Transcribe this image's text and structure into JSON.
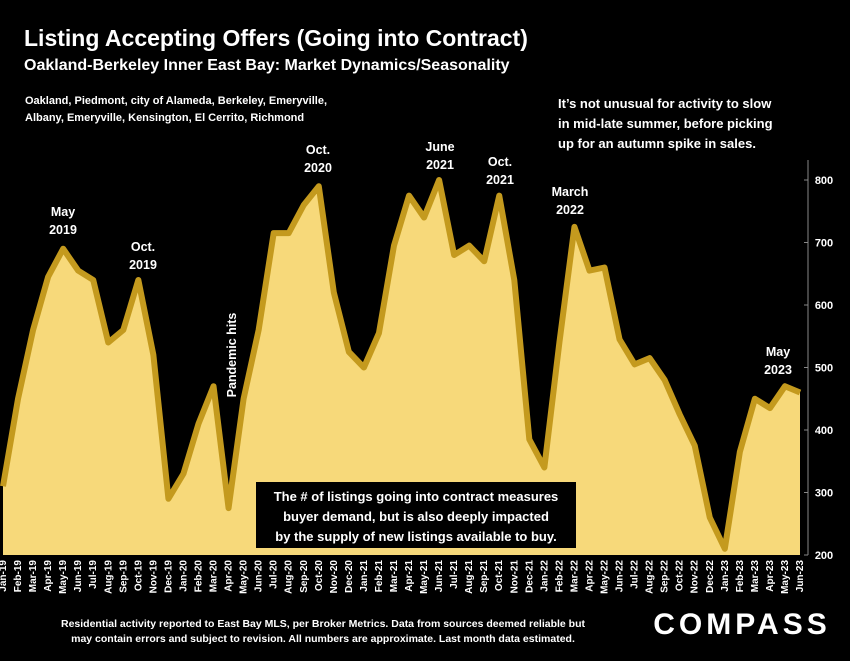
{
  "chart_data": {
    "type": "area",
    "title": "Listing Accepting Offers (Going into Contract)",
    "subtitle": "Oakland-Berkeley Inner East Bay: Market Dynamics/Seasonality",
    "region_note": [
      "Oakland, Piedmont, city of Alameda, Berkeley, Emeryville,",
      "Albany, Emeryville, Kensington, El Cerrito, Richmond"
    ],
    "side_note": [
      "It’s not unusual for activity to slow",
      "in mid-late summer, before picking",
      "up for an autumn spike in sales."
    ],
    "box_note": [
      "The # of listings going into contract measures",
      "buyer demand, but is also deeply impacted",
      "by the supply of new listings available to buy."
    ],
    "footer": [
      "Residential activity reported to East Bay MLS, per Broker Metrics. Data from sources deemed reliable but",
      "may contain errors and subject to revision. All numbers are approximate. Last month data estimated."
    ],
    "logo": "COMPASS",
    "annotations": [
      {
        "lines": [
          "May",
          "2019"
        ]
      },
      {
        "lines": [
          "Oct.",
          "2019"
        ]
      },
      {
        "lines": [
          "Pandemic hits"
        ]
      },
      {
        "lines": [
          "Oct.",
          "2020"
        ]
      },
      {
        "lines": [
          "June",
          "2021"
        ]
      },
      {
        "lines": [
          "Oct.",
          "2021"
        ]
      },
      {
        "lines": [
          "March",
          "2022"
        ]
      },
      {
        "lines": [
          "May",
          "2023"
        ]
      }
    ],
    "categories": [
      "Jan-19",
      "Feb-19",
      "Mar-19",
      "Apr-19",
      "May-19",
      "Jun-19",
      "Jul-19",
      "Aug-19",
      "Sep-19",
      "Oct-19",
      "Nov-19",
      "Dec-19",
      "Jan-20",
      "Feb-20",
      "Mar-20",
      "Apr-20",
      "May-20",
      "Jun-20",
      "Jul-20",
      "Aug-20",
      "Sep-20",
      "Oct-20",
      "Nov-20",
      "Dec-20",
      "Jan-21",
      "Feb-21",
      "Mar-21",
      "Apr-21",
      "May-21",
      "Jun-21",
      "Jul-21",
      "Aug-21",
      "Sep-21",
      "Oct-21",
      "Nov-21",
      "Dec-21",
      "Jan-22",
      "Feb-22",
      "Mar-22",
      "Apr-22",
      "May-22",
      "Jun-22",
      "Jul-22",
      "Aug-22",
      "Sep-22",
      "Oct-22",
      "Nov-22",
      "Dec-22",
      "Jan-23",
      "Feb-23",
      "Mar-23",
      "Apr-23",
      "May-23",
      "Jun-23"
    ],
    "values": [
      310,
      450,
      560,
      645,
      690,
      655,
      640,
      540,
      560,
      640,
      520,
      290,
      330,
      410,
      470,
      275,
      450,
      560,
      715,
      715,
      760,
      790,
      620,
      525,
      500,
      555,
      695,
      775,
      740,
      800,
      680,
      695,
      670,
      775,
      640,
      385,
      340,
      540,
      725,
      655,
      660,
      545,
      505,
      515,
      480,
      425,
      375,
      260,
      210,
      365,
      450,
      435,
      470,
      460
    ],
    "color": "#f7d97a",
    "line_color": "#c49a1e",
    "ylim": [
      200,
      800
    ],
    "yticks": [
      200,
      300,
      400,
      500,
      600,
      700,
      800
    ]
  }
}
